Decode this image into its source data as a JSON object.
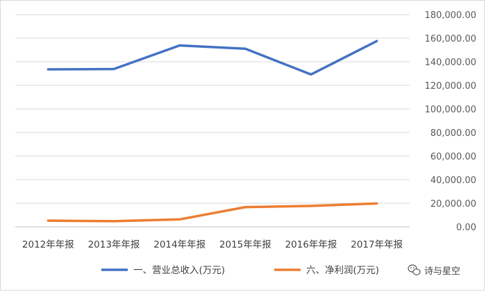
{
  "chart_data": {
    "type": "line",
    "categories": [
      "2012年年报",
      "2013年年报",
      "2014年年报",
      "2015年年报",
      "2016年年报",
      "2017年年报"
    ],
    "series": [
      {
        "name": "一、营业总收入(万元)",
        "color": "#4472C4",
        "values": [
          133500,
          133800,
          153800,
          151000,
          129200,
          157500
        ]
      },
      {
        "name": "六、净利润(万元)",
        "color": "#ED7D31",
        "values": [
          5200,
          4800,
          6300,
          16700,
          17700,
          19800
        ]
      }
    ],
    "yticks": [
      "0.00",
      "20,000.00",
      "40,000.00",
      "60,000.00",
      "80,000.00",
      "100,000.00",
      "120,000.00",
      "140,000.00",
      "160,000.00",
      "180,000.00"
    ],
    "ylim": [
      0,
      180000
    ],
    "grid": true,
    "y_axis_side": "right",
    "legend_position": "bottom"
  },
  "watermark": {
    "text": "诗与星空",
    "icon": "wechat-icon"
  }
}
